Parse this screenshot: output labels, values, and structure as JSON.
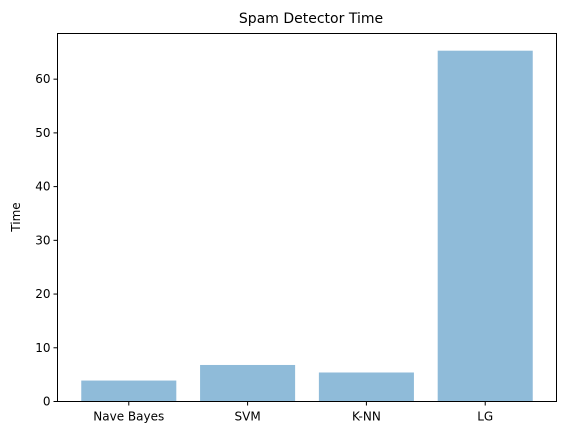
{
  "chart_data": {
    "type": "bar",
    "title": "Spam Detector Time",
    "xlabel": "",
    "ylabel": "Time",
    "categories": [
      "Nave Bayes",
      "SVM",
      "K-NN",
      "LG"
    ],
    "values": [
      3.9,
      6.8,
      5.4,
      65.3
    ],
    "ylim": [
      0,
      68.5
    ],
    "yticks": [
      0,
      10,
      20,
      30,
      40,
      50,
      60
    ],
    "bar_color": "#8fbbd9",
    "grid": false,
    "legend": "none"
  }
}
